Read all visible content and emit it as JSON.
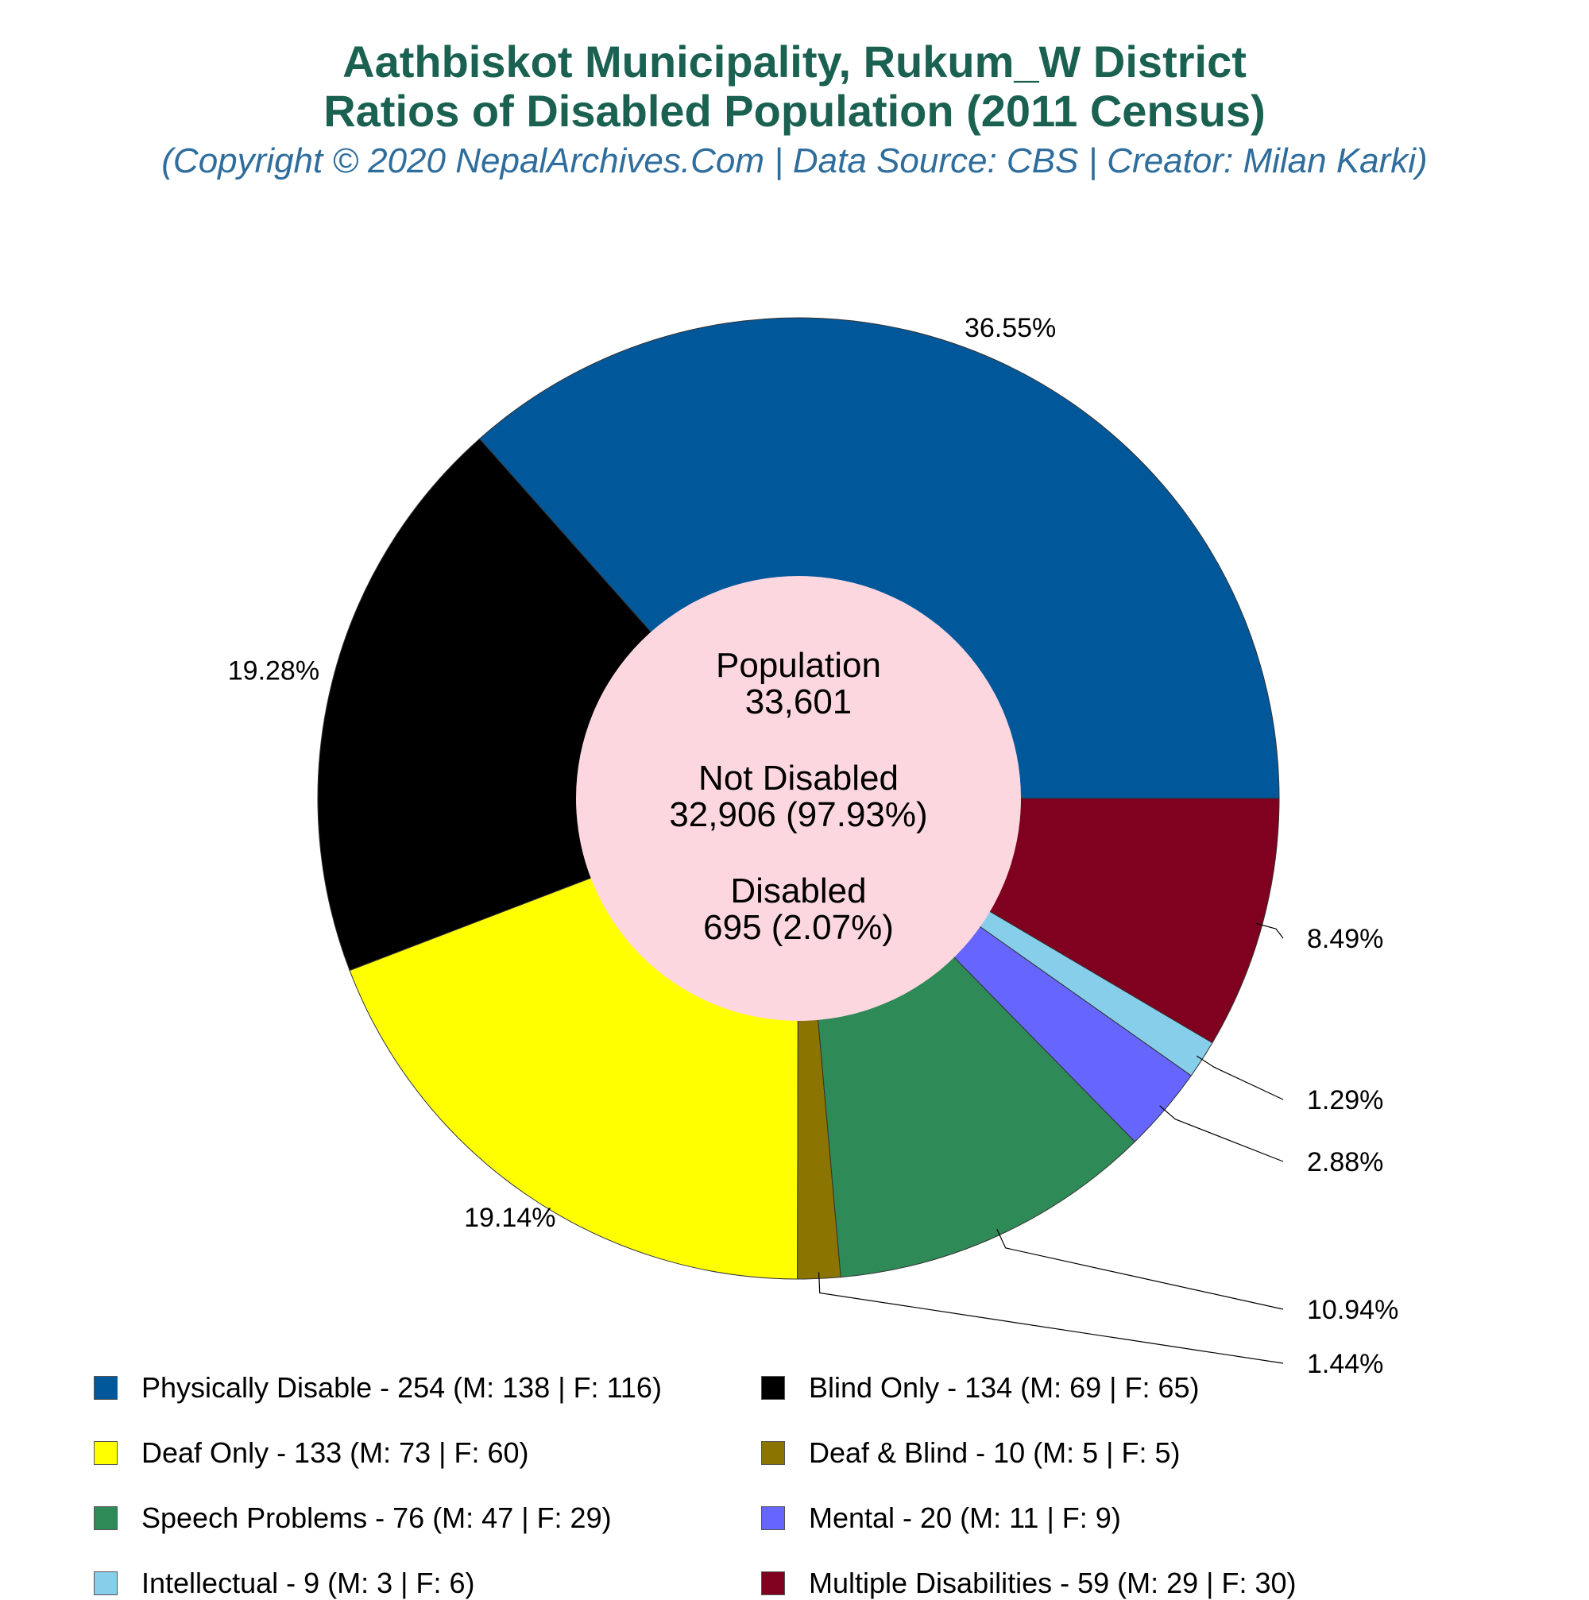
{
  "title_line1": "Aathbiskot Municipality, Rukum_W District",
  "title_line2": "Ratios of Disabled Population (2011 Census)",
  "subtitle": "(Copyright © 2020 NepalArchives.Com | Data Source: CBS | Creator: Milan Karki)",
  "center": {
    "population_label": "Population",
    "population_value": "33,601",
    "not_disabled_label": "Not Disabled",
    "not_disabled_value": "32,906 (97.93%)",
    "disabled_label": "Disabled",
    "disabled_value": "695 (2.07%)"
  },
  "chart_data": {
    "type": "pie",
    "start": "3 o'clock, counterclockwise",
    "slices": [
      {
        "legend": "Physically Disable - 254 (M: 138 | F: 116)",
        "value": 254,
        "percent_label": "36.55%",
        "color": "#00589a"
      },
      {
        "legend": "Blind Only - 134 (M: 69 | F: 65)",
        "value": 134,
        "percent_label": "19.28%",
        "color": "#000000"
      },
      {
        "legend": "Deaf Only - 133 (M: 73 | F: 60)",
        "value": 133,
        "percent_label": "19.14%",
        "color": "#ffff00"
      },
      {
        "legend": "Deaf & Blind - 10 (M: 5 | F: 5)",
        "value": 10,
        "percent_label": "1.44%",
        "color": "#8b7500"
      },
      {
        "legend": "Speech Problems - 76 (M: 47 | F: 29)",
        "value": 76,
        "percent_label": "10.94%",
        "color": "#2e8b57"
      },
      {
        "legend": "Mental - 20 (M: 11 | F: 9)",
        "value": 20,
        "percent_label": "2.88%",
        "color": "#6666ff"
      },
      {
        "legend": "Intellectual - 9 (M: 3 | F: 6)",
        "value": 9,
        "percent_label": "1.29%",
        "color": "#87ceeb"
      },
      {
        "legend": "Multiple Disabilities - 59 (M: 29 | F: 30)",
        "value": 59,
        "percent_label": "8.49%",
        "color": "#800020"
      }
    ],
    "center_circle_color": "#fdd7df",
    "legend_placement": "bottom, two columns"
  }
}
